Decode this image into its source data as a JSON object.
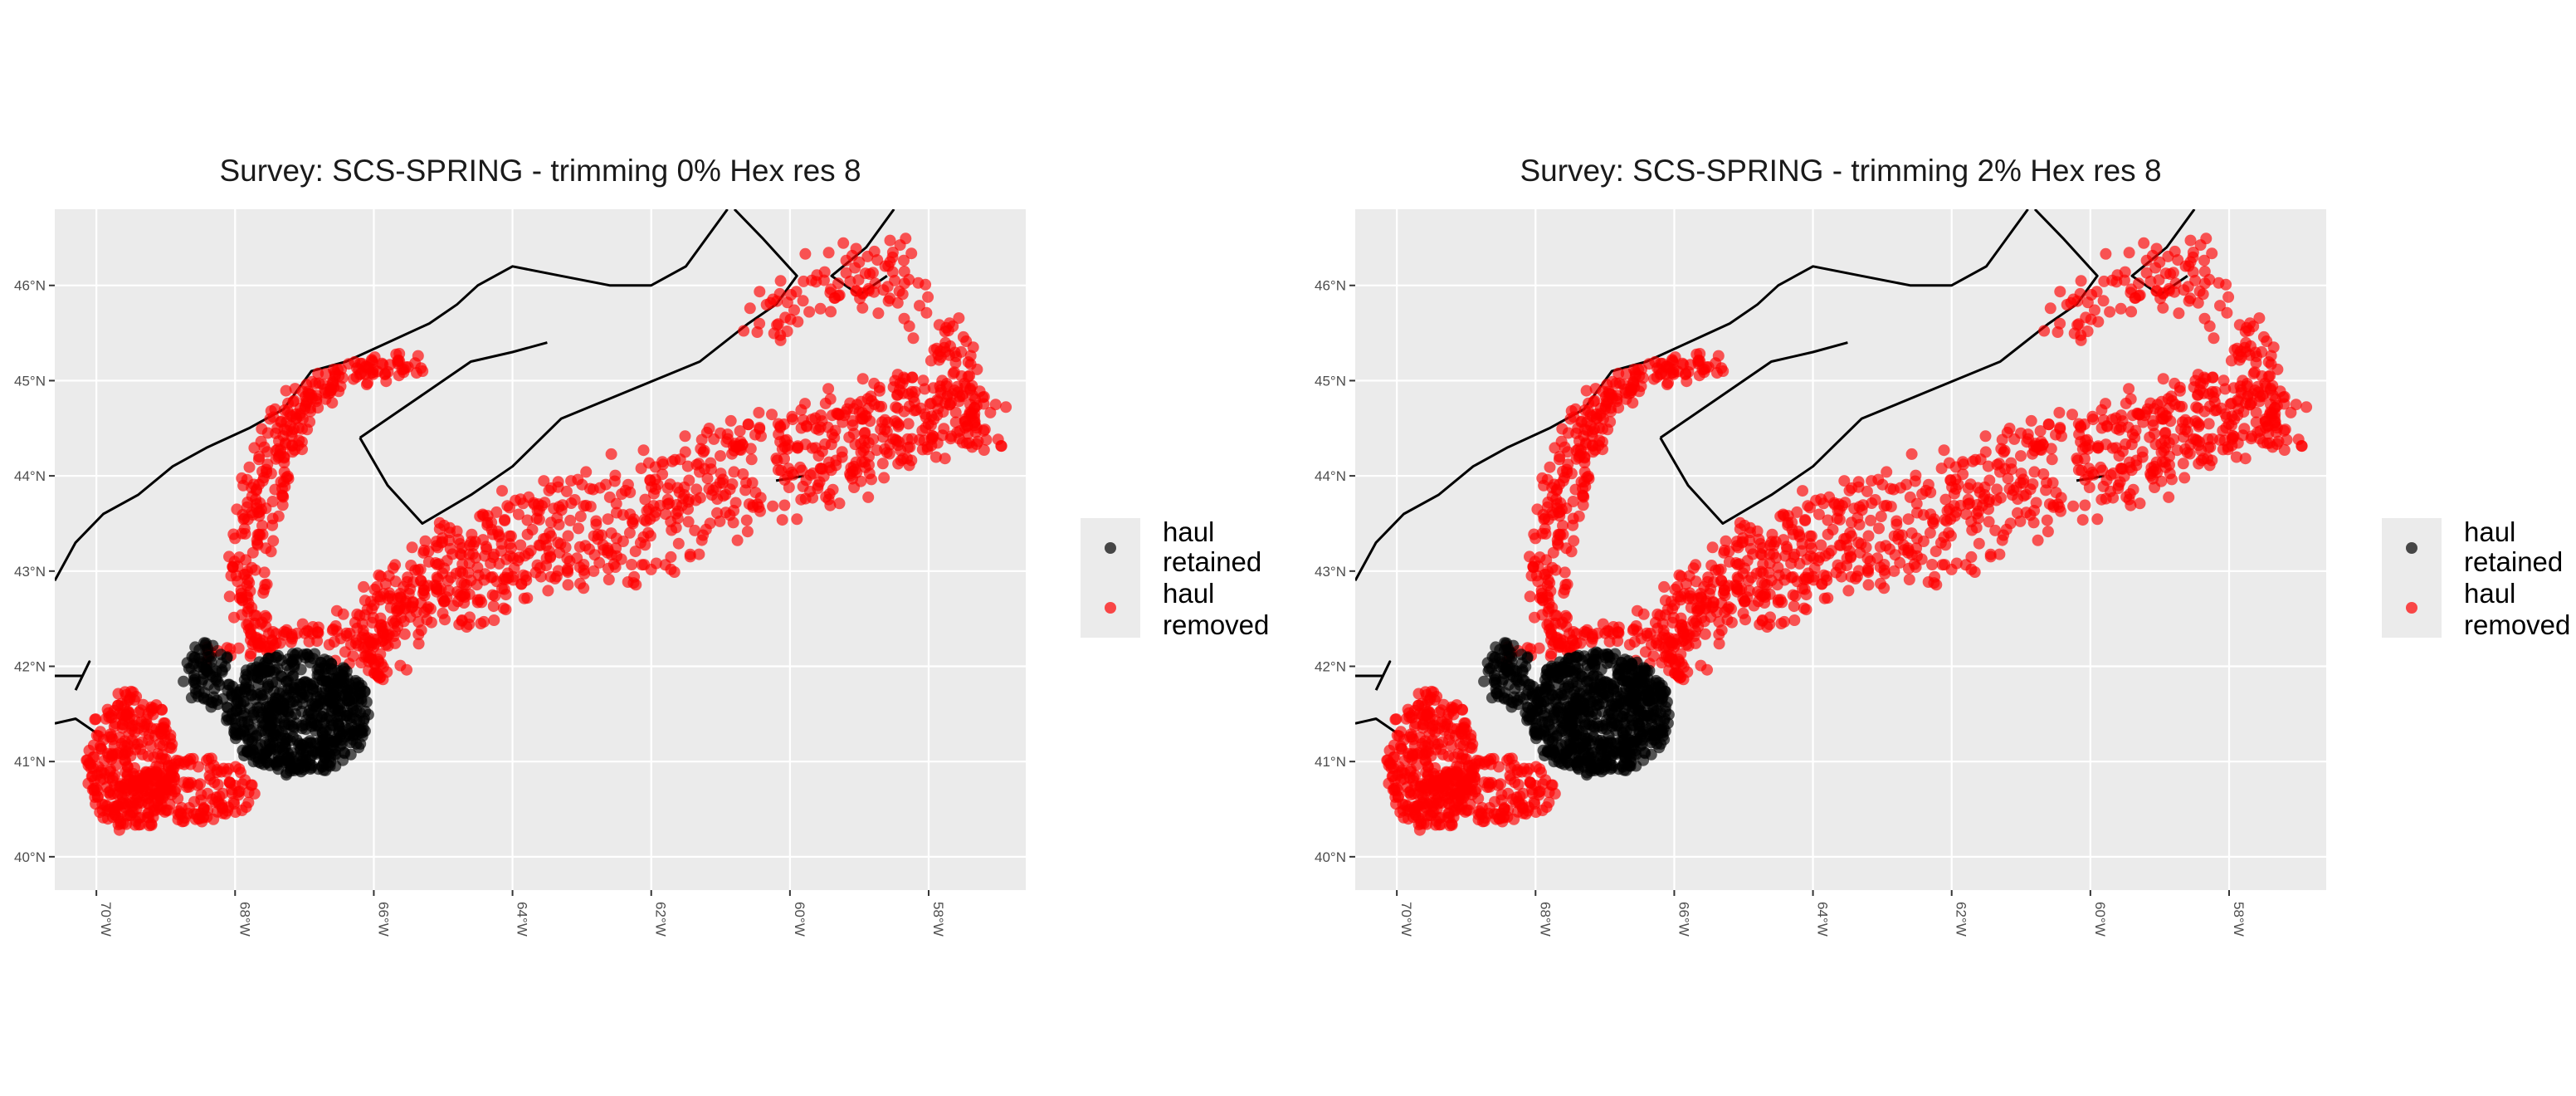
{
  "chart_data": [
    {
      "type": "scatter",
      "title": "Survey: SCS-SPRING - trimming 0% Hex res 8",
      "xlabel": "",
      "ylabel": "",
      "xlim": [
        -70.6,
        -56.6
      ],
      "ylim": [
        39.65,
        46.8
      ],
      "x_ticks": [
        -70,
        -68,
        -66,
        -64,
        -62,
        -60,
        -58
      ],
      "x_tick_labels": [
        "70°W",
        "68°W",
        "66°W",
        "64°W",
        "62°W",
        "60°W",
        "58°W"
      ],
      "y_ticks": [
        40,
        41,
        42,
        43,
        44,
        45,
        46
      ],
      "y_tick_labels": [
        "40°N",
        "41°N",
        "42°N",
        "43°N",
        "44°N",
        "45°N",
        "46°N"
      ],
      "grid": true,
      "legend_position": "right",
      "series": [
        {
          "name": "haul retained",
          "color": "#000000",
          "density": "high",
          "dist": "retained_0"
        },
        {
          "name": "haul removed",
          "color": "#ff0000",
          "density": "high",
          "dist": "removed_0"
        }
      ]
    },
    {
      "type": "scatter",
      "title": "Survey: SCS-SPRING - trimming 2% Hex res 8",
      "xlabel": "",
      "ylabel": "",
      "xlim": [
        -70.6,
        -56.6
      ],
      "ylim": [
        39.65,
        46.8
      ],
      "x_ticks": [
        -70,
        -68,
        -66,
        -64,
        -62,
        -60,
        -58
      ],
      "x_tick_labels": [
        "70°W",
        "68°W",
        "66°W",
        "64°W",
        "62°W",
        "60°W",
        "58°W"
      ],
      "y_ticks": [
        40,
        41,
        42,
        43,
        44,
        45,
        46
      ],
      "y_tick_labels": [
        "40°N",
        "41°N",
        "42°N",
        "43°N",
        "44°N",
        "45°N",
        "46°N"
      ],
      "grid": true,
      "legend_position": "right",
      "series": [
        {
          "name": "haul retained",
          "color": "#000000",
          "density": "high",
          "dist": "retained_2"
        },
        {
          "name": "haul removed",
          "color": "#ff0000",
          "density": "high",
          "dist": "removed_2"
        }
      ]
    }
  ],
  "legend": {
    "entries": [
      {
        "line1": "haul",
        "line2": "retained",
        "color": "#000000"
      },
      {
        "line1": "haul",
        "line2": "removed",
        "color": "#ff0000"
      }
    ]
  },
  "colors": {
    "panel_bg": "#ebebeb",
    "grid": "#ffffff",
    "coast": "#000000",
    "retained": "#000000",
    "removed": "#ff0000"
  }
}
